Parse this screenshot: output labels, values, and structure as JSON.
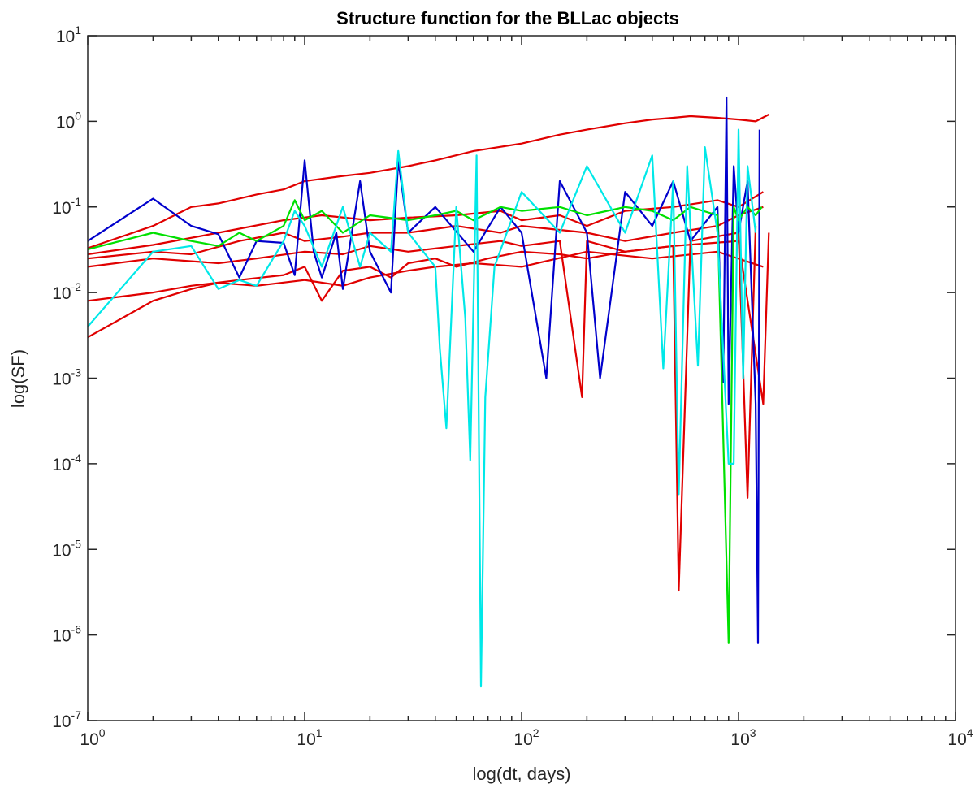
{
  "chart_data": {
    "type": "line",
    "title": "Structure function for the BLLac objects",
    "xlabel": "log(dt, days)",
    "ylabel": "log(SF)",
    "xscale": "log",
    "yscale": "log",
    "xlim": [
      1,
      10000
    ],
    "ylim": [
      1e-07,
      10
    ],
    "grid": false,
    "legend": "none",
    "x_ticks": [
      {
        "base": "10",
        "exp": "0",
        "value": 1
      },
      {
        "base": "10",
        "exp": "1",
        "value": 10
      },
      {
        "base": "10",
        "exp": "2",
        "value": 100
      },
      {
        "base": "10",
        "exp": "3",
        "value": 1000
      },
      {
        "base": "10",
        "exp": "4",
        "value": 10000
      }
    ],
    "y_ticks": [
      {
        "base": "10",
        "exp": "-7",
        "value": 1e-07
      },
      {
        "base": "10",
        "exp": "-6",
        "value": 1e-06
      },
      {
        "base": "10",
        "exp": "-5",
        "value": 1e-05
      },
      {
        "base": "10",
        "exp": "-4",
        "value": 0.0001
      },
      {
        "base": "10",
        "exp": "-3",
        "value": 0.001
      },
      {
        "base": "10",
        "exp": "-2",
        "value": 0.01
      },
      {
        "base": "10",
        "exp": "-1",
        "value": 0.1
      },
      {
        "base": "10",
        "exp": "0",
        "value": 1
      },
      {
        "base": "10",
        "exp": "1",
        "value": 10
      }
    ],
    "series": [
      {
        "color": "#e00000",
        "points": [
          [
            1,
            0.033
          ],
          [
            2,
            0.06
          ],
          [
            3,
            0.1
          ],
          [
            4,
            0.11
          ],
          [
            6,
            0.14
          ],
          [
            8,
            0.16
          ],
          [
            10,
            0.2
          ],
          [
            15,
            0.23
          ],
          [
            20,
            0.25
          ],
          [
            30,
            0.3
          ],
          [
            40,
            0.35
          ],
          [
            60,
            0.45
          ],
          [
            100,
            0.55
          ],
          [
            150,
            0.7
          ],
          [
            200,
            0.8
          ],
          [
            300,
            0.95
          ],
          [
            400,
            1.05
          ],
          [
            500,
            1.1
          ],
          [
            600,
            1.15
          ],
          [
            800,
            1.1
          ],
          [
            1000,
            1.05
          ],
          [
            1200,
            1.0
          ],
          [
            1380,
            1.2
          ]
        ]
      },
      {
        "color": "#e00000",
        "points": [
          [
            1,
            0.028
          ],
          [
            2,
            0.036
          ],
          [
            4,
            0.05
          ],
          [
            8,
            0.07
          ],
          [
            12,
            0.08
          ],
          [
            20,
            0.07
          ],
          [
            30,
            0.075
          ],
          [
            50,
            0.08
          ],
          [
            80,
            0.09
          ],
          [
            100,
            0.07
          ],
          [
            150,
            0.08
          ],
          [
            200,
            0.06
          ],
          [
            300,
            0.09
          ],
          [
            500,
            0.1
          ],
          [
            800,
            0.12
          ],
          [
            1000,
            0.1
          ],
          [
            1300,
            0.15
          ]
        ]
      },
      {
        "color": "#e00000",
        "points": [
          [
            1,
            0.025
          ],
          [
            2,
            0.03
          ],
          [
            3,
            0.028
          ],
          [
            5,
            0.04
          ],
          [
            8,
            0.05
          ],
          [
            10,
            0.04
          ],
          [
            15,
            0.045
          ],
          [
            20,
            0.05
          ],
          [
            30,
            0.05
          ],
          [
            50,
            0.06
          ],
          [
            80,
            0.05
          ],
          [
            100,
            0.06
          ],
          [
            200,
            0.05
          ],
          [
            300,
            0.04
          ],
          [
            500,
            0.05
          ],
          [
            800,
            0.06
          ],
          [
            1000,
            0.08
          ],
          [
            1300,
            0.1
          ]
        ]
      },
      {
        "color": "#e00000",
        "points": [
          [
            1,
            0.02
          ],
          [
            2,
            0.025
          ],
          [
            4,
            0.022
          ],
          [
            6,
            0.025
          ],
          [
            10,
            0.03
          ],
          [
            15,
            0.028
          ],
          [
            20,
            0.035
          ],
          [
            30,
            0.03
          ],
          [
            50,
            0.035
          ],
          [
            80,
            0.04
          ],
          [
            100,
            0.035
          ],
          [
            150,
            0.04
          ],
          [
            190,
            0.0006
          ],
          [
            200,
            0.04
          ],
          [
            300,
            0.03
          ],
          [
            500,
            0.035
          ],
          [
            530,
            3.3e-06
          ],
          [
            600,
            0.04
          ],
          [
            1000,
            0.05
          ],
          [
            1100,
            4e-05
          ],
          [
            1200,
            0.06
          ]
        ]
      },
      {
        "color": "#e00000",
        "points": [
          [
            1,
            0.008
          ],
          [
            2,
            0.01
          ],
          [
            3,
            0.012
          ],
          [
            5,
            0.014
          ],
          [
            8,
            0.016
          ],
          [
            10,
            0.02
          ],
          [
            12,
            0.008
          ],
          [
            15,
            0.018
          ],
          [
            20,
            0.02
          ],
          [
            25,
            0.015
          ],
          [
            30,
            0.022
          ],
          [
            40,
            0.025
          ],
          [
            50,
            0.02
          ],
          [
            70,
            0.025
          ],
          [
            100,
            0.03
          ],
          [
            150,
            0.028
          ],
          [
            200,
            0.025
          ],
          [
            300,
            0.03
          ],
          [
            500,
            0.035
          ],
          [
            1000,
            0.04
          ],
          [
            1300,
            0.0005
          ],
          [
            1380,
            0.05
          ]
        ]
      },
      {
        "color": "#e00000",
        "points": [
          [
            1,
            0.003
          ],
          [
            2,
            0.008
          ],
          [
            3,
            0.011
          ],
          [
            4,
            0.013
          ],
          [
            6,
            0.012
          ],
          [
            10,
            0.014
          ],
          [
            15,
            0.012
          ],
          [
            20,
            0.015
          ],
          [
            30,
            0.018
          ],
          [
            40,
            0.02
          ],
          [
            60,
            0.022
          ],
          [
            100,
            0.02
          ],
          [
            200,
            0.03
          ],
          [
            400,
            0.025
          ],
          [
            800,
            0.03
          ],
          [
            1300,
            0.02
          ]
        ]
      },
      {
        "color": "#0000cc",
        "points": [
          [
            1,
            0.04
          ],
          [
            2,
            0.125
          ],
          [
            3,
            0.06
          ],
          [
            4,
            0.048
          ],
          [
            5,
            0.015
          ],
          [
            6,
            0.04
          ],
          [
            8,
            0.038
          ],
          [
            9,
            0.016
          ],
          [
            10,
            0.35
          ],
          [
            11,
            0.03
          ],
          [
            12,
            0.015
          ],
          [
            14,
            0.05
          ],
          [
            15,
            0.011
          ],
          [
            18,
            0.2
          ],
          [
            20,
            0.03
          ],
          [
            25,
            0.01
          ],
          [
            27,
            0.35
          ],
          [
            30,
            0.05
          ],
          [
            40,
            0.1
          ],
          [
            60,
            0.03
          ],
          [
            80,
            0.1
          ],
          [
            100,
            0.05
          ],
          [
            130,
            0.001
          ],
          [
            150,
            0.2
          ],
          [
            200,
            0.05
          ],
          [
            230,
            0.001
          ],
          [
            300,
            0.15
          ],
          [
            400,
            0.06
          ],
          [
            500,
            0.2
          ],
          [
            600,
            0.04
          ],
          [
            800,
            0.1
          ],
          [
            850,
            0.0009
          ],
          [
            880,
            1.9
          ],
          [
            900,
            0.0005
          ],
          [
            950,
            0.3
          ],
          [
            1000,
            0.05
          ],
          [
            1100,
            0.2
          ],
          [
            1200,
            0.0005
          ],
          [
            1230,
            8e-07
          ],
          [
            1250,
            0.8
          ]
        ]
      },
      {
        "color": "#00e000",
        "points": [
          [
            1,
            0.032
          ],
          [
            2,
            0.05
          ],
          [
            3,
            0.04
          ],
          [
            4,
            0.035
          ],
          [
            5,
            0.05
          ],
          [
            6,
            0.04
          ],
          [
            8,
            0.06
          ],
          [
            9,
            0.12
          ],
          [
            10,
            0.07
          ],
          [
            12,
            0.09
          ],
          [
            15,
            0.05
          ],
          [
            20,
            0.08
          ],
          [
            30,
            0.07
          ],
          [
            40,
            0.08
          ],
          [
            50,
            0.09
          ],
          [
            60,
            0.07
          ],
          [
            80,
            0.1
          ],
          [
            100,
            0.09
          ],
          [
            150,
            0.1
          ],
          [
            200,
            0.08
          ],
          [
            300,
            0.1
          ],
          [
            400,
            0.09
          ],
          [
            500,
            0.07
          ],
          [
            600,
            0.1
          ],
          [
            800,
            0.08
          ],
          [
            900,
            8e-07
          ],
          [
            950,
            0.1
          ],
          [
            1000,
            0.07
          ],
          [
            1100,
            0.1
          ],
          [
            1200,
            0.08
          ],
          [
            1280,
            0.1
          ]
        ]
      },
      {
        "color": "#00e8e8",
        "points": [
          [
            1,
            0.004
          ],
          [
            2,
            0.03
          ],
          [
            3,
            0.035
          ],
          [
            4,
            0.011
          ],
          [
            5,
            0.014
          ],
          [
            6,
            0.012
          ],
          [
            8,
            0.04
          ],
          [
            9,
            0.09
          ],
          [
            10,
            0.06
          ],
          [
            12,
            0.02
          ],
          [
            15,
            0.1
          ],
          [
            18,
            0.02
          ],
          [
            20,
            0.05
          ],
          [
            25,
            0.03
          ],
          [
            27,
            0.45
          ],
          [
            30,
            0.05
          ],
          [
            40,
            0.02
          ],
          [
            42,
            0.0022
          ],
          [
            45,
            0.00026
          ],
          [
            50,
            0.1
          ],
          [
            55,
            0.005
          ],
          [
            58,
            0.00011
          ],
          [
            62,
            0.4
          ],
          [
            65,
            2.5e-07
          ],
          [
            68,
            0.0006
          ],
          [
            75,
            0.02
          ],
          [
            100,
            0.15
          ],
          [
            150,
            0.05
          ],
          [
            200,
            0.3
          ],
          [
            300,
            0.05
          ],
          [
            400,
            0.4
          ],
          [
            450,
            0.0013
          ],
          [
            500,
            0.2
          ],
          [
            530,
            4.4e-05
          ],
          [
            580,
            0.3
          ],
          [
            650,
            0.0014
          ],
          [
            700,
            0.5
          ],
          [
            800,
            0.05
          ],
          [
            900,
            0.0001
          ],
          [
            950,
            0.0001
          ],
          [
            1000,
            0.8
          ],
          [
            1050,
            0.001
          ],
          [
            1100,
            0.3
          ],
          [
            1200,
            0.05
          ]
        ]
      }
    ]
  }
}
